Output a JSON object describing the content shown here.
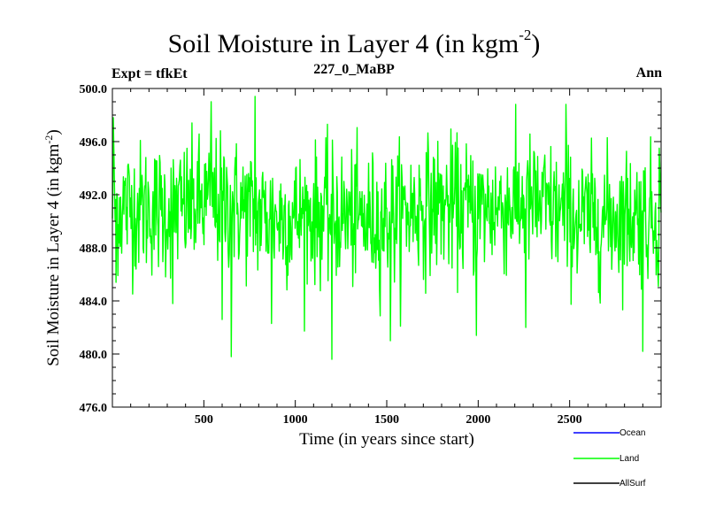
{
  "header": {
    "title_main": "Soil Moisture in Layer 4 (in kgm",
    "title_sup": "-2",
    "title_end": ")",
    "expt": "Expt = tfkEt",
    "run": "227_0_MaBP",
    "period": "Ann"
  },
  "axes": {
    "ylabel_main": "Soil Moisture in Layer 4 (in kgm",
    "ylabel_sup": "-2",
    "ylabel_end": ")",
    "xlabel": "Time (in years since start)"
  },
  "chart_data": {
    "type": "line",
    "xlim": [
      0,
      3000
    ],
    "ylim": [
      476.0,
      500.0
    ],
    "xticks": [
      500,
      1000,
      1500,
      2000,
      2500
    ],
    "xtick_labels": [
      "500",
      "1000",
      "1500",
      "2000",
      "2500"
    ],
    "yticks": [
      476.0,
      480.0,
      484.0,
      488.0,
      492.0,
      496.0,
      500.0
    ],
    "ytick_labels": [
      "476.0",
      "480.0",
      "484.0",
      "488.0",
      "492.0",
      "496.0",
      "500.0"
    ],
    "series": [
      {
        "name": "Ocean",
        "color": "#0000ff",
        "values": []
      },
      {
        "name": "Land",
        "color": "#00ff00",
        "mean": 490.7,
        "std": 2.5,
        "n_years": 3000,
        "notable_points": [
          {
            "x": 5,
            "y": 497.8
          },
          {
            "x": 20,
            "y": 485.4
          },
          {
            "x": 65,
            "y": 493.0
          },
          {
            "x": 330,
            "y": 483.8
          },
          {
            "x": 540,
            "y": 499.0
          },
          {
            "x": 600,
            "y": 482.6
          },
          {
            "x": 650,
            "y": 479.8
          },
          {
            "x": 780,
            "y": 499.4
          },
          {
            "x": 870,
            "y": 482.3
          },
          {
            "x": 1200,
            "y": 479.6
          },
          {
            "x": 1520,
            "y": 481.0
          },
          {
            "x": 1990,
            "y": 481.4
          },
          {
            "x": 2260,
            "y": 482.0
          },
          {
            "x": 2480,
            "y": 498.8
          },
          {
            "x": 2900,
            "y": 480.2
          },
          {
            "x": 2990,
            "y": 495.5
          }
        ]
      },
      {
        "name": "AllSurf",
        "color": "#000000",
        "values": []
      }
    ],
    "legend_position": "bottom-right"
  }
}
